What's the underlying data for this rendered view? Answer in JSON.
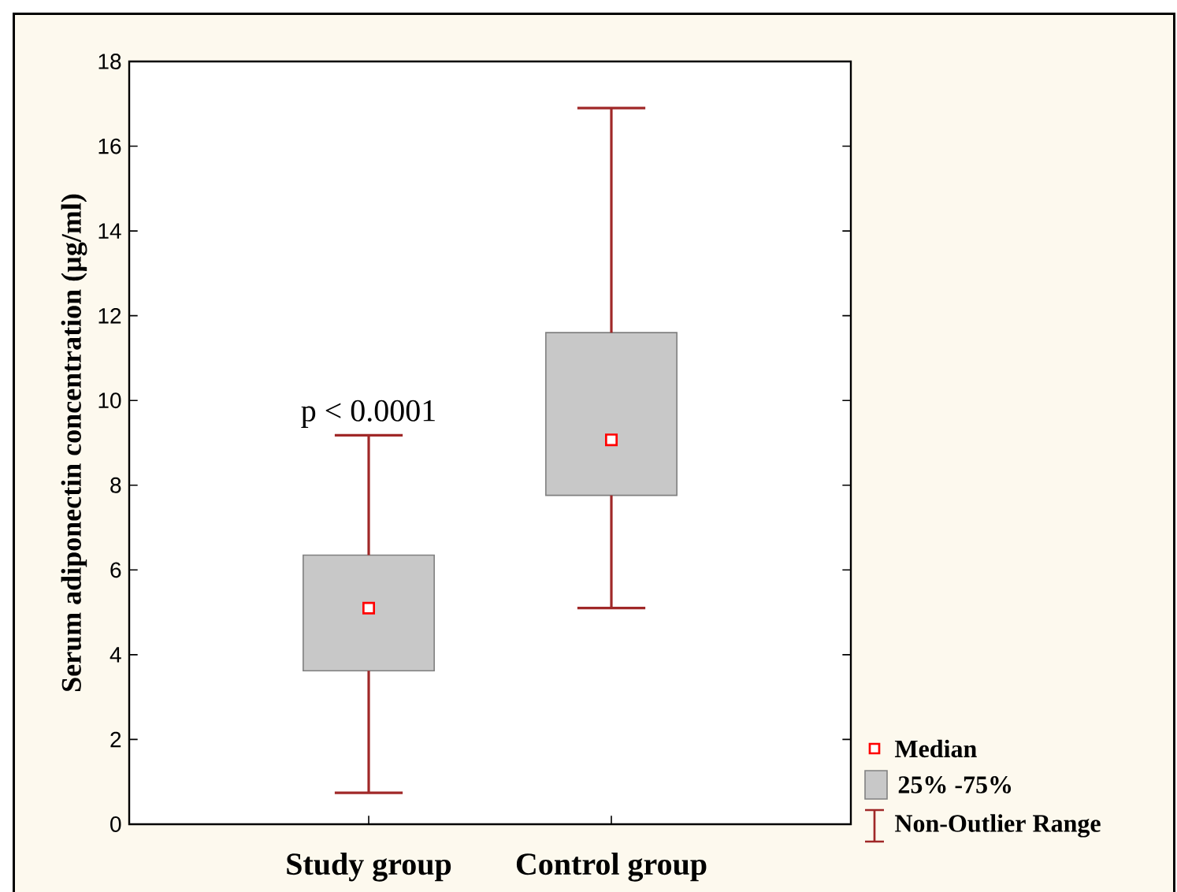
{
  "chart_data": {
    "type": "box",
    "ylabel": "Serum adiponectin concentration (µg/ml)",
    "categories": [
      "Study group",
      "Control group"
    ],
    "ylim": [
      0,
      18
    ],
    "yticks": [
      0,
      2,
      4,
      6,
      8,
      10,
      12,
      14,
      16,
      18
    ],
    "series": [
      {
        "color": "#c8c8c8",
        "boxes": [
          {
            "low": 0.74,
            "q1": 3.62,
            "median": 5.1,
            "q3": 6.35,
            "high": 9.18
          },
          {
            "low": 5.1,
            "q1": 7.76,
            "median": 9.07,
            "q3": 11.6,
            "high": 16.9
          }
        ]
      }
    ],
    "annotations": [
      "p < 0.0001",
      "Median",
      "25% -75%",
      "Non-Outlier Range"
    ],
    "grid": false
  }
}
